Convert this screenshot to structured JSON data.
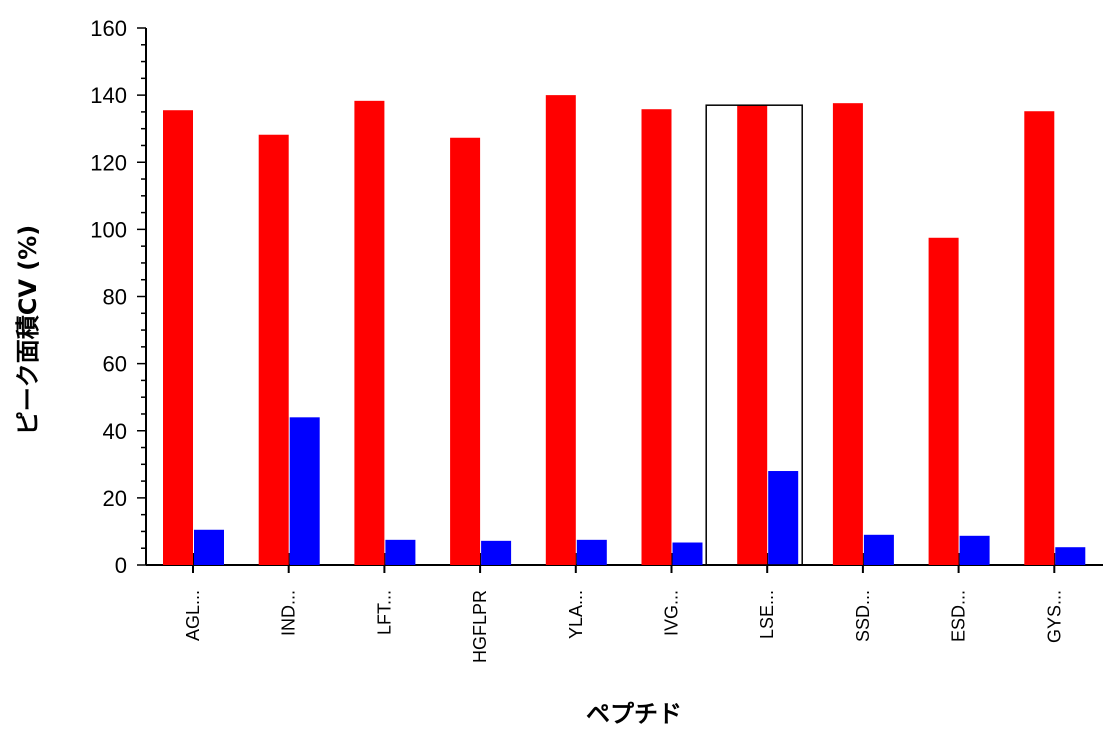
{
  "chart_data": {
    "type": "bar",
    "xlabel": "ペプチド",
    "ylabel": "ピーク面積CV (%)",
    "ylim": [
      0,
      160
    ],
    "yticks": [
      0,
      20,
      40,
      60,
      80,
      100,
      120,
      140,
      160
    ],
    "categories": [
      "AGL...",
      "IND...",
      "LFT...",
      "HGFLPR",
      "YLA...",
      "IVG...",
      "LSE...",
      "SSD...",
      "ESD...",
      "GYS..."
    ],
    "series": [
      {
        "color": "#ff0000",
        "values": [
          135.5,
          128.2,
          138.3,
          127.3,
          140.0,
          135.8,
          137.0,
          137.6,
          97.5,
          135.2
        ]
      },
      {
        "color": "#0000ff",
        "values": [
          10.5,
          44.0,
          7.5,
          7.2,
          7.5,
          6.7,
          28.0,
          9.0,
          8.7,
          5.3
        ]
      }
    ],
    "selected_category": "LSE...",
    "grid": false,
    "legend": false
  }
}
